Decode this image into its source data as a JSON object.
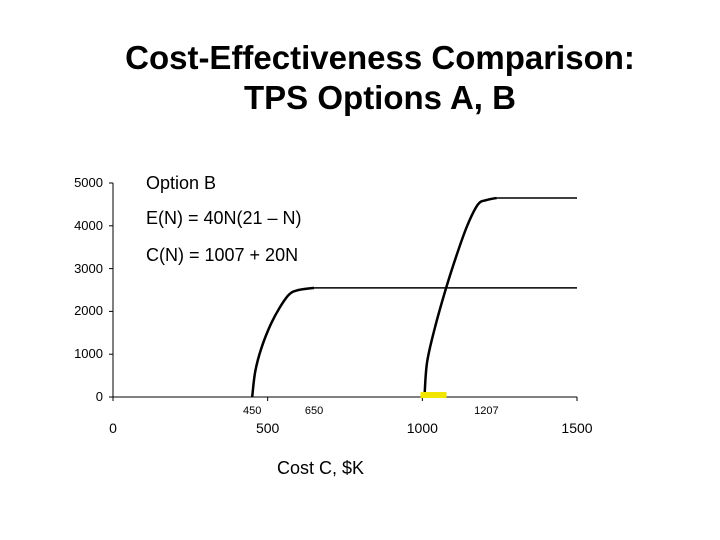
{
  "chart_data": {
    "type": "line",
    "title_line1": "Cost-Effectiveness Comparison:",
    "title_line2": "TPS Options A, B",
    "xlabel": "Cost C, $K",
    "ylabel": "",
    "xlim": [
      0,
      1500
    ],
    "ylim": [
      0,
      5000
    ],
    "y_ticks": [
      "0",
      "1000",
      "2000",
      "3000",
      "4000",
      "5000"
    ],
    "x_major_ticks": [
      "0",
      "500",
      "1000",
      "1500"
    ],
    "x_minor_labels": [
      "450",
      "650",
      "1207"
    ],
    "annotations": {
      "option_label": "Option B",
      "effectiveness_formula": "E(N) = 40N(21 – N)",
      "cost_formula": "C(N) = 1007 + 20N"
    },
    "series": [
      {
        "x": [
          450,
          460,
          480,
          510,
          540,
          570,
          600,
          650,
          1500
        ],
        "y": [
          0,
          600,
          1150,
          1700,
          2100,
          2400,
          2500,
          2550,
          2550
        ]
      },
      {
        "x": [
          1007,
          1015,
          1040,
          1075,
          1110,
          1145,
          1180,
          1207,
          1240,
          1500
        ],
        "y": [
          0,
          800,
          1600,
          2500,
          3300,
          4000,
          4500,
          4600,
          4650,
          4650
        ]
      }
    ],
    "marker_color": "#f2e600"
  }
}
